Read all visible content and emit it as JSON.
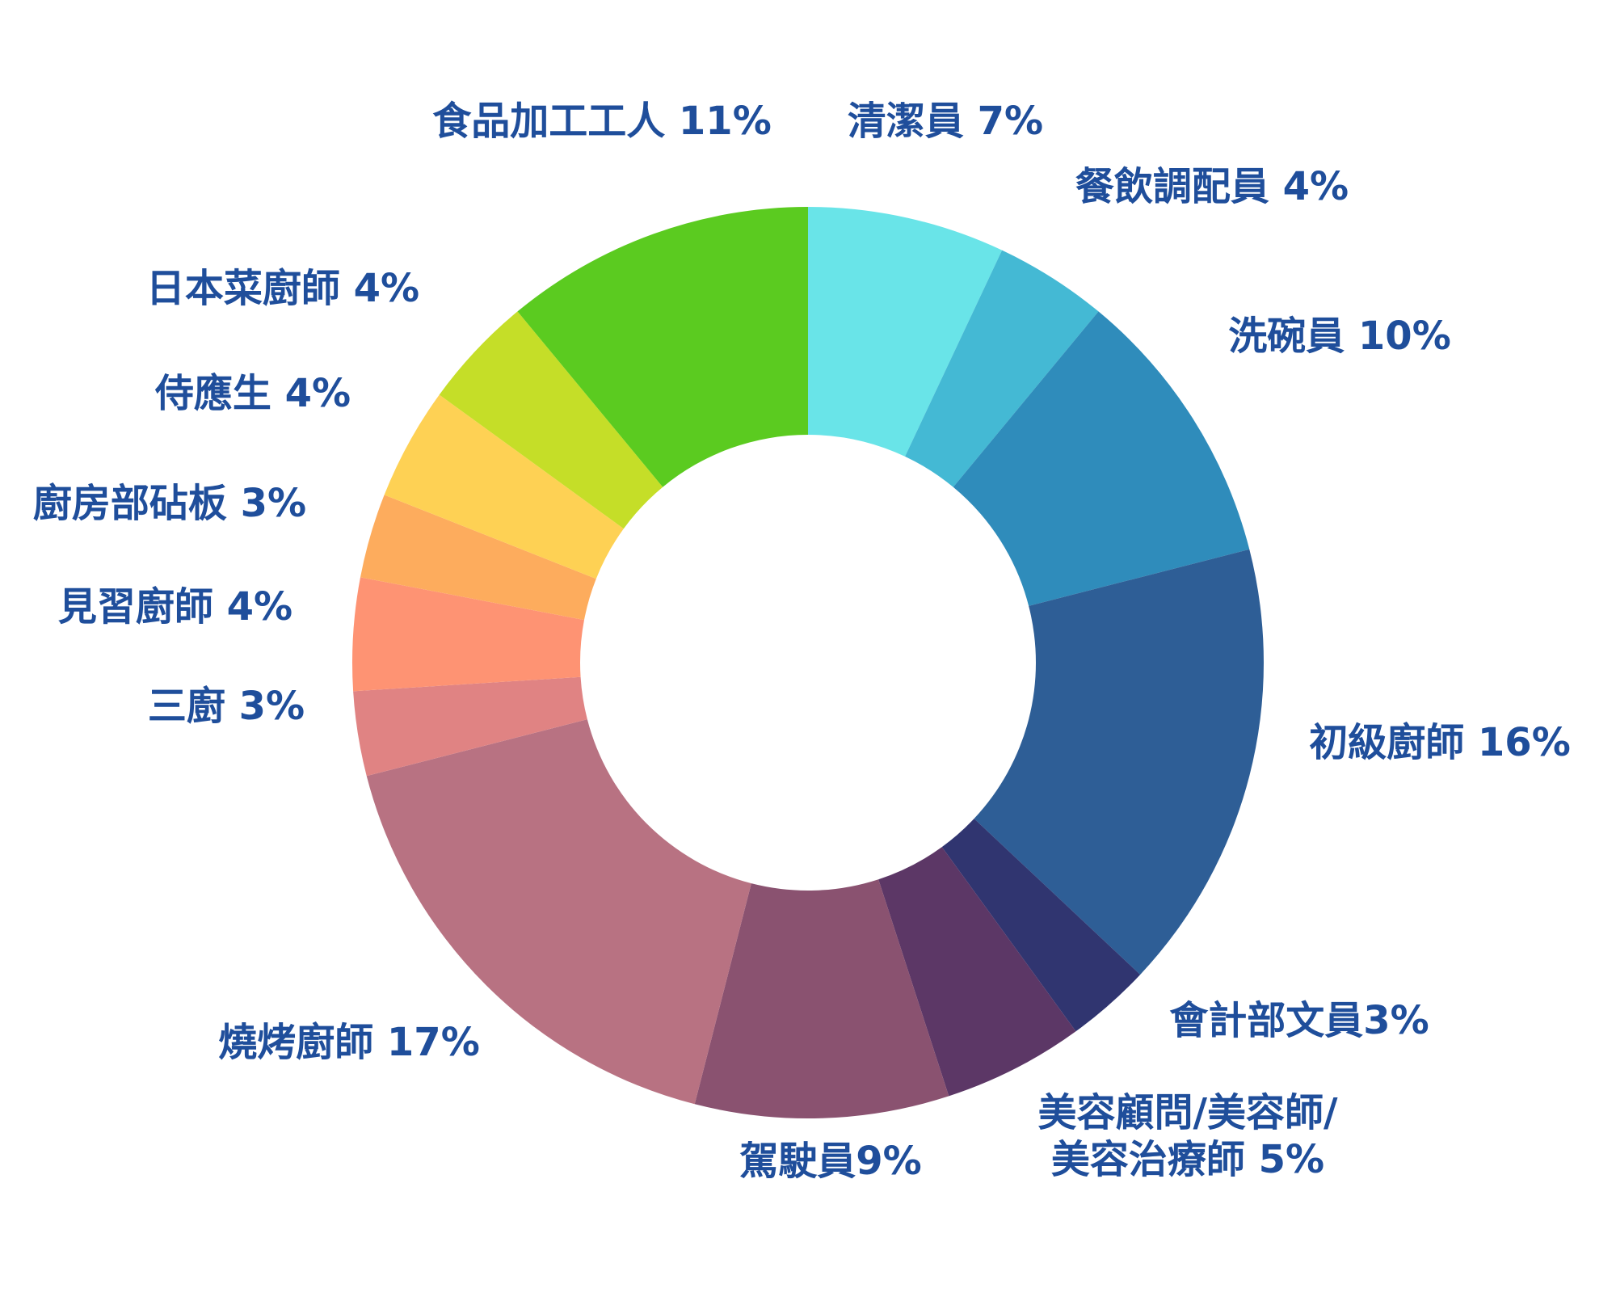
{
  "chart_data": {
    "type": "pie",
    "variant": "donut",
    "title": "",
    "legend": "none",
    "labels": [
      {
        "text": "清潔員 7%",
        "lines": [
          "清潔員 7%"
        ],
        "value": 7,
        "color": "#69e4e8"
      },
      {
        "text": "餐飲調配員 4%",
        "lines": [
          "餐飲調配員 4%"
        ],
        "value": 4,
        "color": "#44b9d4"
      },
      {
        "text": "洗碗員 10%",
        "lines": [
          "洗碗員 10%"
        ],
        "value": 10,
        "color": "#2f8cbb"
      },
      {
        "text": "初級廚師 16%",
        "lines": [
          "初級廚師 16%"
        ],
        "value": 16,
        "color": "#2e5e96"
      },
      {
        "text": "會計部文員3%",
        "lines": [
          "會計部文員3%"
        ],
        "value": 3,
        "color": "#303570"
      },
      {
        "text": "美容顧問/美容師/美容治療師 5%",
        "lines": [
          "美容顧問/美容師/",
          "美容治療師 5%"
        ],
        "value": 5,
        "color": "#5c3766"
      },
      {
        "text": "駕駛員9%",
        "lines": [
          "駕駛員9%"
        ],
        "value": 9,
        "color": "#8a5270"
      },
      {
        "text": "燒烤廚師 17%",
        "lines": [
          "燒烤廚師 17%"
        ],
        "value": 17,
        "color": "#b87282"
      },
      {
        "text": "三廚 3%",
        "lines": [
          "三廚 3%"
        ],
        "value": 3,
        "color": "#e08383"
      },
      {
        "text": "見習廚師 4%",
        "lines": [
          "見習廚師 4%"
        ],
        "value": 4,
        "color": "#fe9373"
      },
      {
        "text": "廚房部砧板 3%",
        "lines": [
          "廚房部砧板 3%"
        ],
        "value": 3,
        "color": "#fdac5d"
      },
      {
        "text": "侍應生 4%",
        "lines": [
          "侍應生 4%"
        ],
        "value": 4,
        "color": "#fed154"
      },
      {
        "text": "日本菜廚師 4%",
        "lines": [
          "日本菜廚師 4%"
        ],
        "value": 4,
        "color": "#c5de28"
      },
      {
        "text": "食品加工工人 11%",
        "lines": [
          "食品加工工人 11%"
        ],
        "value": 11,
        "color": "#5bcb20"
      }
    ]
  }
}
